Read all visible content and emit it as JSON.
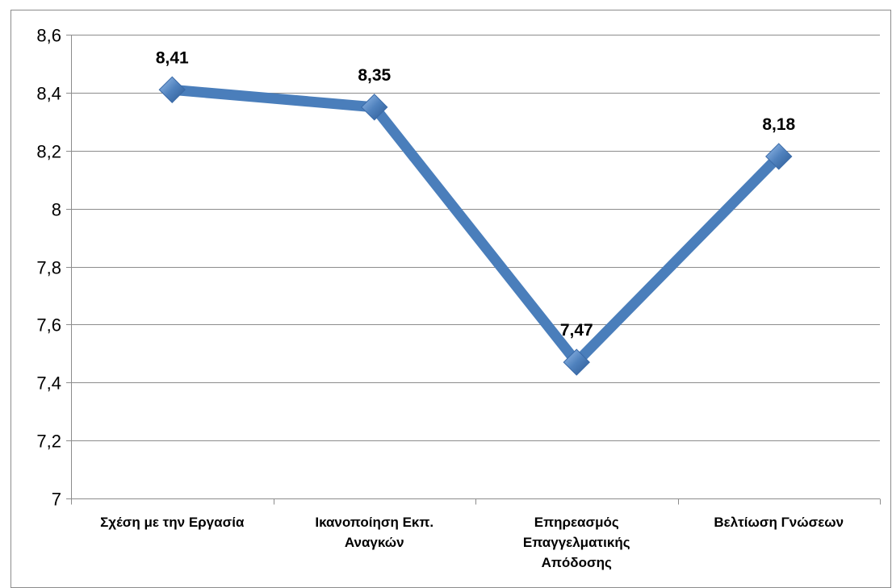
{
  "chart_data": {
    "type": "line",
    "title": "",
    "xlabel": "",
    "ylabel": "",
    "categories": [
      [
        "Σχέση με την Εργασία"
      ],
      [
        "Ικανοποίηση Εκπ.",
        "Αναγκών"
      ],
      [
        "Επηρεασμός",
        "Επαγγελματικής",
        "Απόδοσης"
      ],
      [
        "Βελτίωση Γνώσεων"
      ]
    ],
    "series": [
      {
        "values": [
          8.41,
          8.35,
          7.47,
          8.18
        ],
        "data_labels": [
          "8,41",
          "8,35",
          "7,47",
          "8,18"
        ]
      }
    ],
    "ylim": [
      7,
      8.6
    ],
    "y_ticks": [
      7,
      7.2,
      7.4,
      7.6,
      7.8,
      8,
      8.2,
      8.4,
      8.6
    ],
    "y_tick_labels": [
      "7",
      "7,2",
      "7,4",
      "7,6",
      "7,8",
      "8",
      "8,2",
      "8,4",
      "8,6"
    ],
    "grid": true,
    "legend": "none",
    "colors": {
      "line": "#4a7ebb",
      "marker": "#4f81bd",
      "grid": "#8c8c8c",
      "axis": "#8c8c8c"
    }
  }
}
